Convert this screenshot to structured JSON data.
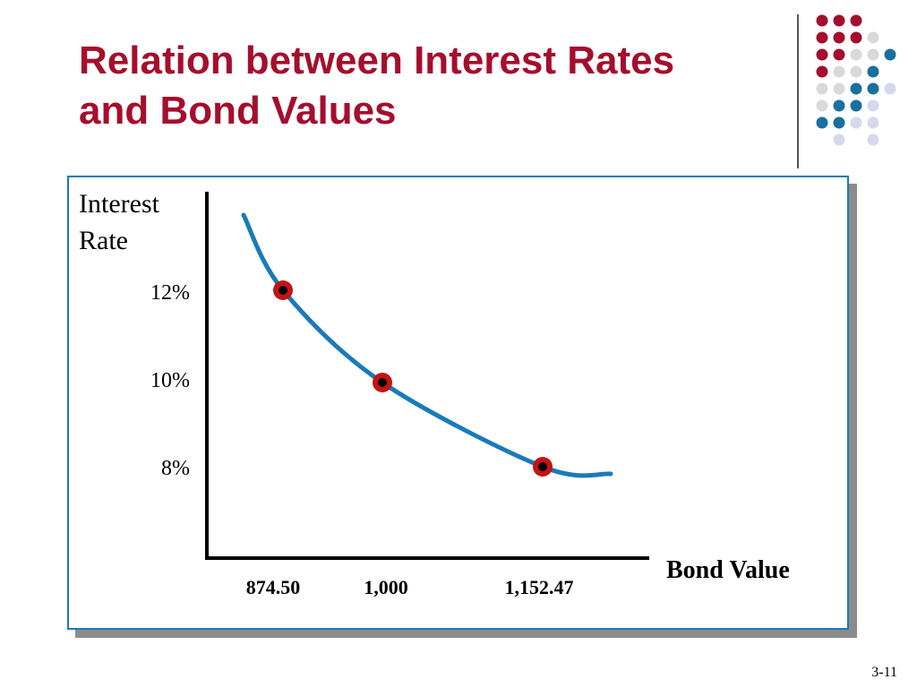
{
  "slide": {
    "title_line1": "Relation between Interest Rates",
    "title_line2": "and Bond Values",
    "page_number": "3-11"
  },
  "colors": {
    "title": "#a50e2d",
    "curve": "#1a7bb8",
    "marker": "#c41414",
    "frame": "#1a7bb8",
    "dot_red": "#a50e2d",
    "dot_blue": "#1a6fa0",
    "dot_gray": "#d9d9d9",
    "dot_lavender": "#d6d9ec"
  },
  "chart_data": {
    "type": "line",
    "ylabel_line1": "Interest",
    "ylabel_line2": "Rate",
    "xlabel": "Bond Value",
    "y_ticks": [
      "12%",
      "10%",
      "8%"
    ],
    "x_ticks": [
      "874.50",
      "1,000",
      "1,152.47"
    ],
    "points": [
      {
        "x": 874.5,
        "y": 12,
        "x_label": "874.50",
        "y_label": "12%"
      },
      {
        "x": 1000,
        "y": 10,
        "x_label": "1,000",
        "y_label": "10%"
      },
      {
        "x": 1152.47,
        "y": 8,
        "x_label": "1,152.47",
        "y_label": "8%"
      }
    ],
    "curve": [
      [
        825,
        13.7
      ],
      [
        874.5,
        12
      ],
      [
        1000,
        10
      ],
      [
        1152.47,
        8
      ],
      [
        1220,
        7.9
      ]
    ],
    "grid": false,
    "legend": "none"
  }
}
